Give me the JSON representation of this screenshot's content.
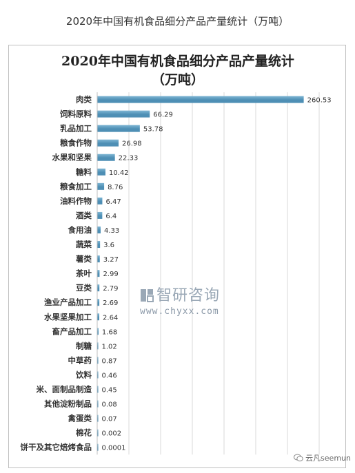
{
  "page": {
    "title": "2020年中国有机食品细分产品产量统计（万吨）"
  },
  "watermark": {
    "brand": "智研咨询",
    "url": "www.chyxx.com"
  },
  "credit": {
    "text": "云凡seemun",
    "icon": "wechat-icon"
  },
  "colors": {
    "bar": "#4e8fb5",
    "bar_highlight": "#7fb6d4",
    "grid": "#d9d9d9"
  },
  "chart_data": {
    "type": "bar",
    "orientation": "horizontal",
    "title_line1": "2020年中国有机食品细分产品产量统计",
    "title_line2": "（万吨）",
    "xlim": [
      0,
      280
    ],
    "grid": true,
    "categories": [
      "肉类",
      "饲料原料",
      "乳品加工",
      "粮食作物",
      "水果和坚果",
      "糖料",
      "粮食加工",
      "油料作物",
      "酒类",
      "食用油",
      "蔬菜",
      "薯类",
      "茶叶",
      "豆类",
      "渔业产品加工",
      "水果坚果加工",
      "畜产品加工",
      "制糖",
      "中草药",
      "饮料",
      "米、面制品制造",
      "其他淀粉制品",
      "禽蛋类",
      "棉花",
      "饼干及其它焙烤食品"
    ],
    "values": [
      260.53,
      66.29,
      53.78,
      26.98,
      22.33,
      10.42,
      8.76,
      6.47,
      6.4,
      4.33,
      3.6,
      3.27,
      2.99,
      2.79,
      2.69,
      2.64,
      1.68,
      1.02,
      0.87,
      0.46,
      0.45,
      0.08,
      0.07,
      0.002,
      0.0001
    ],
    "value_labels": [
      "260.53",
      "66.29",
      "53.78",
      "26.98",
      "22.33",
      "10.42",
      "8.76",
      "6.47",
      "6.4",
      "4.33",
      "3.6",
      "3.27",
      "2.99",
      "2.79",
      "2.69",
      "2.64",
      "1.68",
      "1.02",
      "0.87",
      "0.46",
      "0.45",
      "0.08",
      "0.07",
      "0.002",
      "0.0001"
    ]
  }
}
